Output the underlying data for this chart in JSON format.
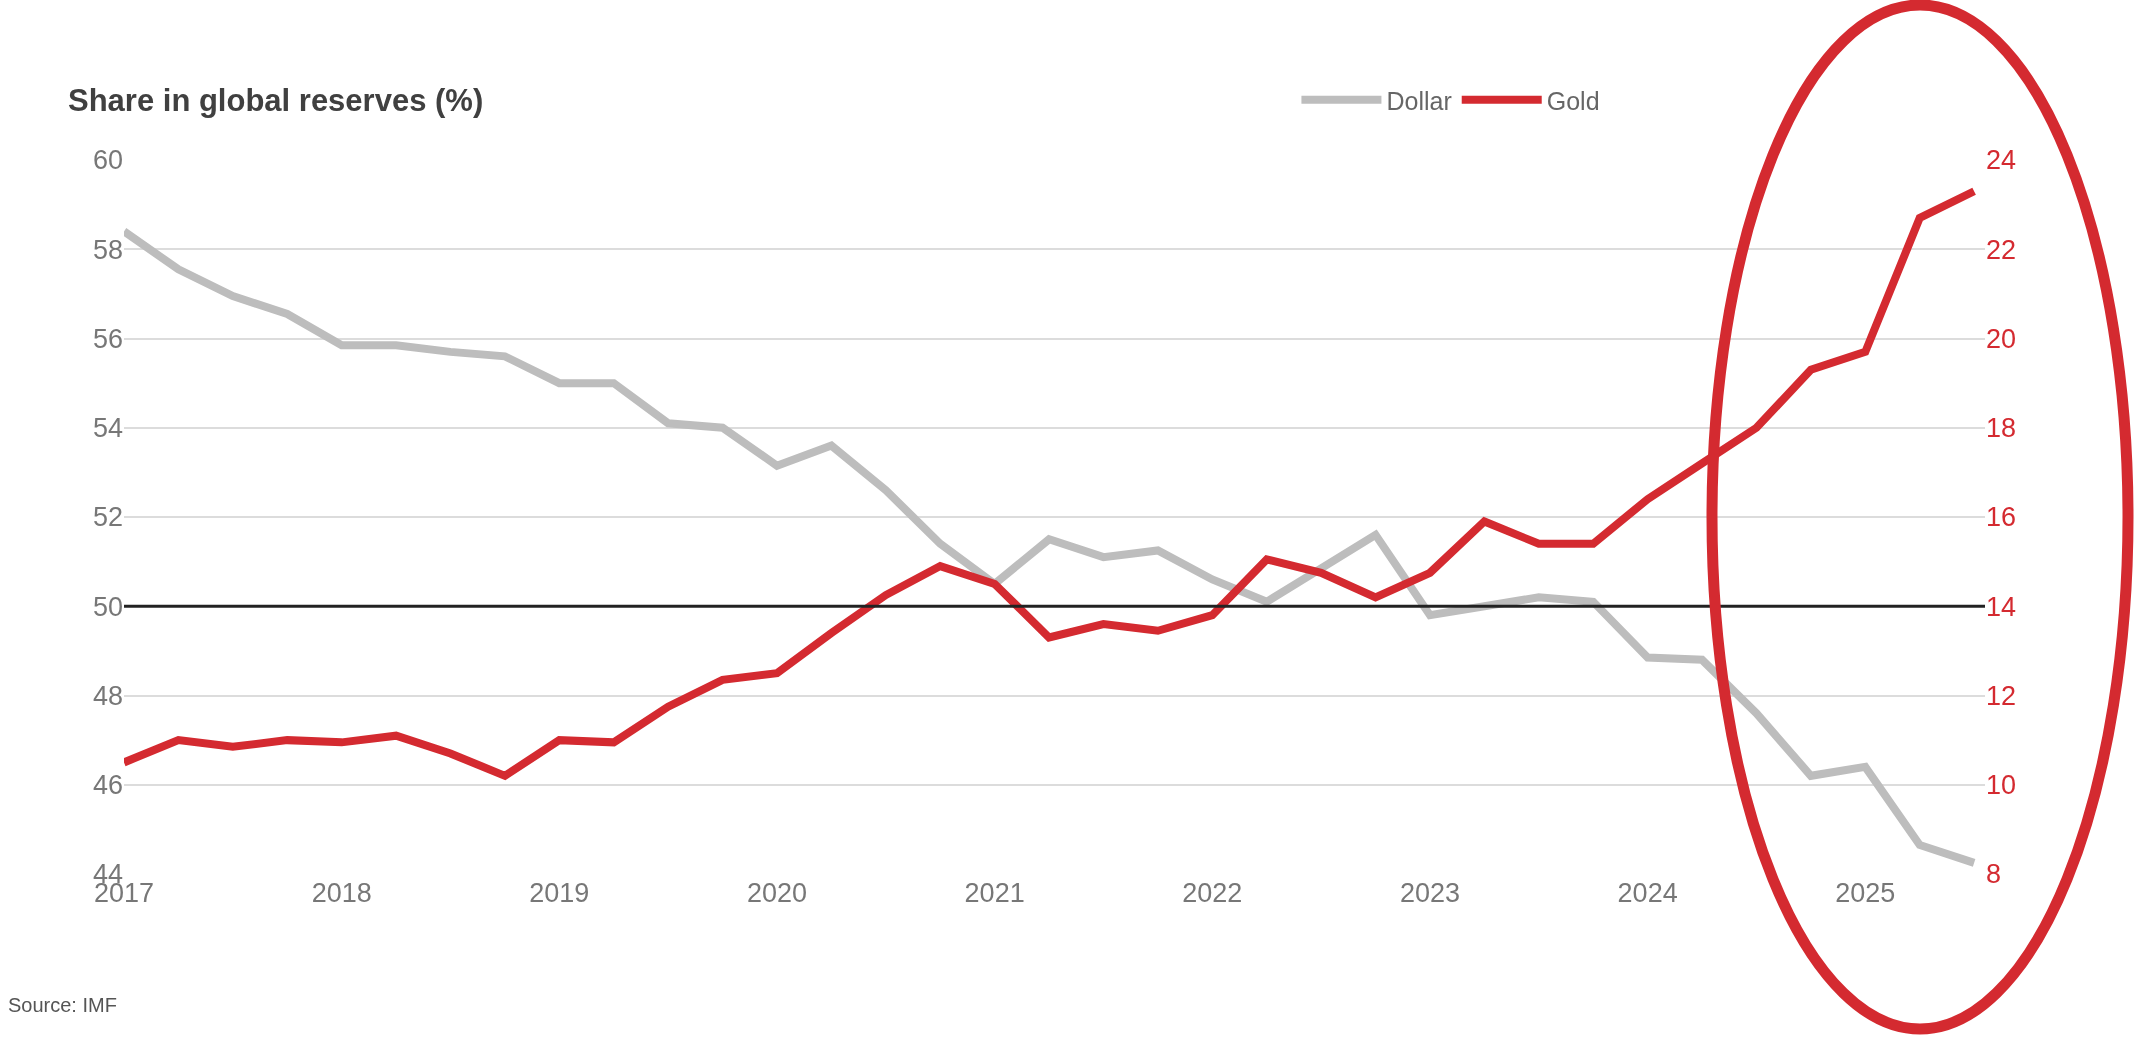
{
  "chart_data": {
    "type": "line",
    "title": "Share in global reserves (%)",
    "x": [
      2017,
      2017.25,
      2017.5,
      2017.75,
      2018,
      2018.25,
      2018.5,
      2018.75,
      2019,
      2019.25,
      2019.5,
      2019.75,
      2020,
      2020.25,
      2020.5,
      2020.75,
      2021,
      2021.25,
      2021.5,
      2021.75,
      2022,
      2022.25,
      2022.5,
      2022.75,
      2023,
      2023.25,
      2023.5,
      2023.75,
      2024,
      2024.25,
      2024.5,
      2024.75,
      2025,
      2025.25,
      2025.5
    ],
    "series": [
      {
        "name": "Dollar",
        "color": "#bdbdbd",
        "values": [
          58.4,
          57.55,
          56.95,
          56.55,
          55.85,
          55.85,
          55.7,
          55.6,
          55.0,
          55.0,
          54.1,
          54.0,
          53.15,
          53.6,
          52.6,
          51.4,
          50.5,
          51.5,
          51.1,
          51.25,
          50.6,
          50.1,
          50.85,
          51.6,
          49.8,
          50.0,
          50.2,
          50.1,
          48.85,
          48.8,
          47.6,
          46.2,
          46.4,
          44.65,
          44.25
        ]
      },
      {
        "name": "Gold",
        "color": "#d42a30",
        "axis": "y2",
        "values": [
          10.5,
          11.0,
          10.85,
          11.0,
          10.95,
          11.1,
          10.7,
          10.2,
          11.0,
          10.95,
          11.75,
          12.35,
          12.5,
          13.4,
          14.25,
          14.9,
          14.5,
          13.3,
          13.6,
          13.45,
          13.8,
          15.05,
          14.75,
          14.2,
          14.75,
          15.9,
          15.4,
          15.4,
          16.4,
          17.2,
          18.0,
          19.3,
          19.7,
          22.7,
          23.3
        ]
      }
    ],
    "xlim": [
      2017,
      2025.55
    ],
    "xticks": [
      2017,
      2018,
      2019,
      2020,
      2021,
      2022,
      2023,
      2024,
      2025
    ],
    "ylim": [
      44,
      60
    ],
    "yticks": [
      44,
      46,
      48,
      50,
      52,
      54,
      56,
      58,
      60
    ],
    "y2lim": [
      8,
      24
    ],
    "y2ticks": [
      8,
      10,
      12,
      14,
      16,
      18,
      20,
      22,
      24
    ],
    "ref_lines": [
      {
        "axis": "y",
        "value": 50,
        "color": "#222222"
      }
    ],
    "grid": "y",
    "legend": "top right",
    "marker": "none",
    "line_style": "solid",
    "annotations": [
      "Source: IMF"
    ]
  }
}
